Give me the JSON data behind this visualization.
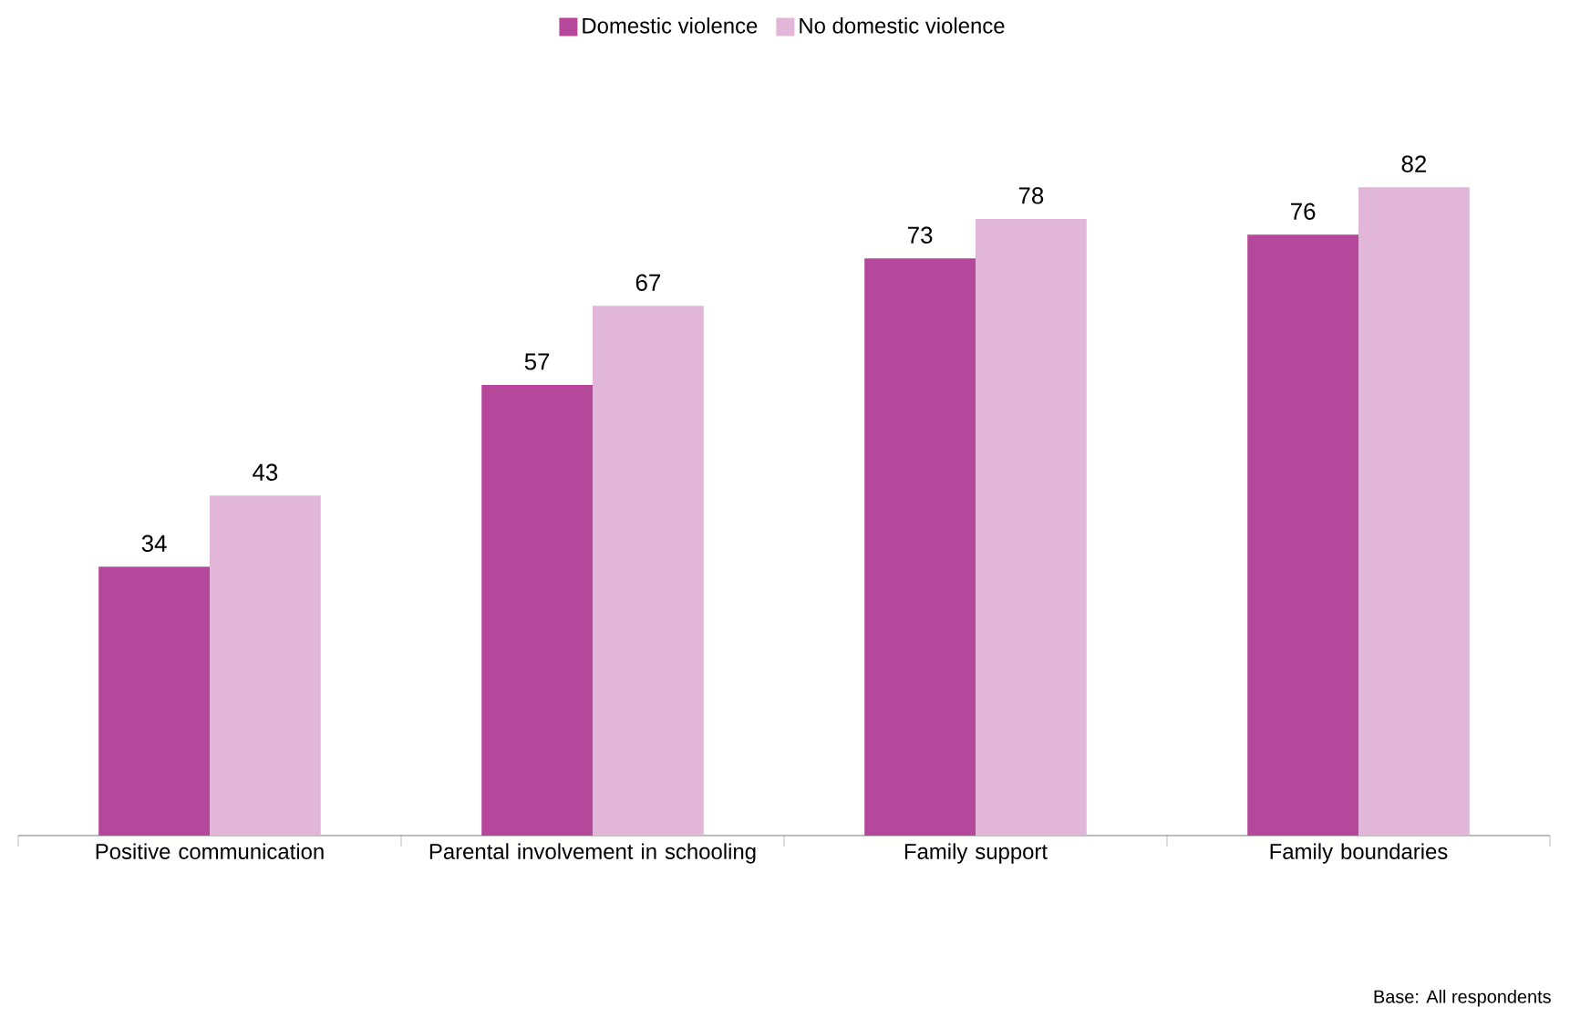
{
  "chart_data": {
    "type": "bar",
    "categories": [
      "Positive communication",
      "Parental involvement in schooling",
      "Family support",
      "Family boundaries"
    ],
    "series": [
      {
        "name": "Domestic violence",
        "color": "#b5489a",
        "values": [
          34,
          57,
          73,
          76
        ]
      },
      {
        "name": "No domestic violence",
        "color": "#e2b6d8",
        "values": [
          43,
          67,
          78,
          82
        ]
      }
    ],
    "data_labels": true,
    "legend": "top",
    "tick_labels": "x",
    "annotations": [
      "Base: All respondents"
    ]
  }
}
